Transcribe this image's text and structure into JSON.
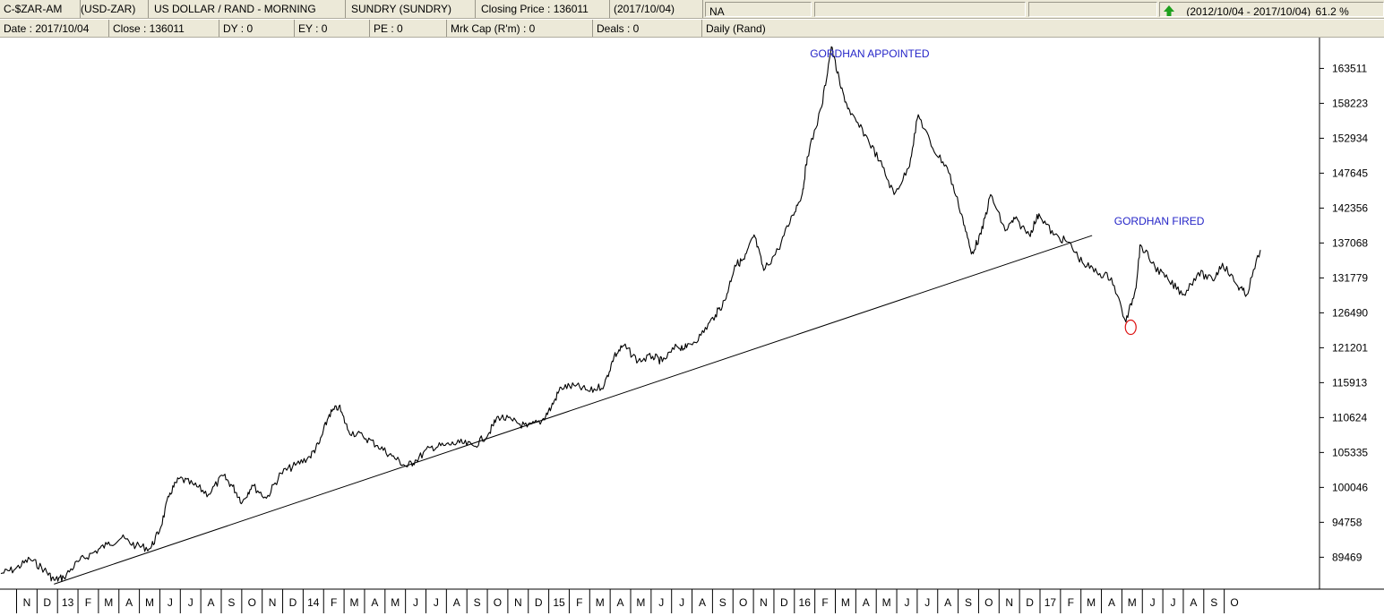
{
  "header": {
    "code": "C-$ZAR-AM",
    "pair": "(USD-ZAR)",
    "name": "US DOLLAR / RAND - MORNING",
    "sector": "SUNDRY (SUNDRY)",
    "closing": "Closing Price : 136011",
    "closing_date": "(2017/10/04)",
    "na": "NA",
    "range": "(2012/10/04 - 2017/10/04)",
    "pct": "61.2 %",
    "arrow_color": "#1ea01e"
  },
  "stats": {
    "date": "Date : 2017/10/04",
    "close": "Close : 136011",
    "dy": "DY : 0",
    "ey": "EY : 0",
    "pe": "PE : 0",
    "mrkcap": "Mrk Cap (R'm) : 0",
    "deals": "Deals : 0",
    "period": "Daily (Rand)"
  },
  "chart_data": {
    "type": "line",
    "x_start": "2012-10-04",
    "x_end": "2017-10-04",
    "ylim": [
      84500,
      167500
    ],
    "y_ticks": [
      89469,
      94758,
      100046,
      105335,
      110624,
      115913,
      121201,
      126490,
      131779,
      137068,
      142356,
      147645,
      152934,
      158223,
      163511
    ],
    "x_ticks": [
      "N",
      "D",
      "13",
      "F",
      "M",
      "A",
      "M",
      "J",
      "J",
      "A",
      "S",
      "O",
      "N",
      "D",
      "14",
      "F",
      "M",
      "A",
      "M",
      "J",
      "J",
      "A",
      "S",
      "O",
      "N",
      "D",
      "15",
      "F",
      "M",
      "A",
      "M",
      "J",
      "J",
      "A",
      "S",
      "O",
      "N",
      "D",
      "16",
      "F",
      "M",
      "A",
      "M",
      "J",
      "J",
      "A",
      "S",
      "O",
      "N",
      "D",
      "17",
      "F",
      "M",
      "A",
      "M",
      "J",
      "J",
      "A",
      "S",
      "O"
    ],
    "series": [
      {
        "values": [
          [
            "2012-10-04",
            87000
          ],
          [
            "2012-10-25",
            87700
          ],
          [
            "2012-11-15",
            89200
          ],
          [
            "2012-12-06",
            87600
          ],
          [
            "2012-12-20",
            86000
          ],
          [
            "2013-01-03",
            86400
          ],
          [
            "2013-01-24",
            88800
          ],
          [
            "2013-02-14",
            90100
          ],
          [
            "2013-03-07",
            91400
          ],
          [
            "2013-03-28",
            92400
          ],
          [
            "2013-04-18",
            91200
          ],
          [
            "2013-05-09",
            90800
          ],
          [
            "2013-05-23",
            93800
          ],
          [
            "2013-06-06",
            99200
          ],
          [
            "2013-06-20",
            101400
          ],
          [
            "2013-07-11",
            100400
          ],
          [
            "2013-08-01",
            99000
          ],
          [
            "2013-08-22",
            101800
          ],
          [
            "2013-09-05",
            100200
          ],
          [
            "2013-09-19",
            97800
          ],
          [
            "2013-10-03",
            100400
          ],
          [
            "2013-10-24",
            98400
          ],
          [
            "2013-11-14",
            102200
          ],
          [
            "2013-12-05",
            103400
          ],
          [
            "2013-12-26",
            104700
          ],
          [
            "2014-01-09",
            106800
          ],
          [
            "2014-01-23",
            111100
          ],
          [
            "2014-02-06",
            112300
          ],
          [
            "2014-02-20",
            108600
          ],
          [
            "2014-03-13",
            107800
          ],
          [
            "2014-04-03",
            106400
          ],
          [
            "2014-04-24",
            104800
          ],
          [
            "2014-05-15",
            103200
          ],
          [
            "2014-05-29",
            104200
          ],
          [
            "2014-06-19",
            106100
          ],
          [
            "2014-07-10",
            106400
          ],
          [
            "2014-07-31",
            106800
          ],
          [
            "2014-08-21",
            106300
          ],
          [
            "2014-09-11",
            108200
          ],
          [
            "2014-09-25",
            110800
          ],
          [
            "2014-10-16",
            110100
          ],
          [
            "2014-11-06",
            109200
          ],
          [
            "2014-11-27",
            110100
          ],
          [
            "2014-12-11",
            112200
          ],
          [
            "2014-12-25",
            115200
          ],
          [
            "2015-01-15",
            115400
          ],
          [
            "2015-02-05",
            114600
          ],
          [
            "2015-02-26",
            115600
          ],
          [
            "2015-03-12",
            119900
          ],
          [
            "2015-03-26",
            121500
          ],
          [
            "2015-04-16",
            119200
          ],
          [
            "2015-05-07",
            119900
          ],
          [
            "2015-05-21",
            119100
          ],
          [
            "2015-06-11",
            121400
          ],
          [
            "2015-06-25",
            121200
          ],
          [
            "2015-07-16",
            123100
          ],
          [
            "2015-08-06",
            126200
          ],
          [
            "2015-08-20",
            128400
          ],
          [
            "2015-09-03",
            133700
          ],
          [
            "2015-09-17",
            134600
          ],
          [
            "2015-10-01",
            138300
          ],
          [
            "2015-10-15",
            132900
          ],
          [
            "2015-11-05",
            136100
          ],
          [
            "2015-11-26",
            141300
          ],
          [
            "2015-12-10",
            144600
          ],
          [
            "2015-12-17",
            150100
          ],
          [
            "2016-01-07",
            157700
          ],
          [
            "2016-01-21",
            166800
          ],
          [
            "2016-02-04",
            160500
          ],
          [
            "2016-02-18",
            156500
          ],
          [
            "2016-03-10",
            153500
          ],
          [
            "2016-03-31",
            149500
          ],
          [
            "2016-04-21",
            144400
          ],
          [
            "2016-05-12",
            148400
          ],
          [
            "2016-05-26",
            156500
          ],
          [
            "2016-06-16",
            151400
          ],
          [
            "2016-07-07",
            148500
          ],
          [
            "2016-07-28",
            141400
          ],
          [
            "2016-08-11",
            135400
          ],
          [
            "2016-08-25",
            138400
          ],
          [
            "2016-09-08",
            144400
          ],
          [
            "2016-09-29",
            138900
          ],
          [
            "2016-10-13",
            140700
          ],
          [
            "2016-11-03",
            138300
          ],
          [
            "2016-11-17",
            141500
          ],
          [
            "2016-12-08",
            138300
          ],
          [
            "2016-12-29",
            137200
          ],
          [
            "2017-01-19",
            134100
          ],
          [
            "2017-02-09",
            132600
          ],
          [
            "2017-03-02",
            131800
          ],
          [
            "2017-03-23",
            125100
          ],
          [
            "2017-04-06",
            130100
          ],
          [
            "2017-04-13",
            136800
          ],
          [
            "2017-05-04",
            133500
          ],
          [
            "2017-05-25",
            131200
          ],
          [
            "2017-06-15",
            129300
          ],
          [
            "2017-07-06",
            132600
          ],
          [
            "2017-07-27",
            131400
          ],
          [
            "2017-08-10",
            134000
          ],
          [
            "2017-08-31",
            130700
          ],
          [
            "2017-09-14",
            129200
          ],
          [
            "2017-10-04",
            136011
          ]
        ]
      }
    ],
    "trendline": [
      [
        "2012-12-20",
        85400
      ],
      [
        "2017-02-02",
        138200
      ]
    ],
    "annotations": [
      {
        "text": "GORDHAN APPOINTED",
        "date": "2015-12-21",
        "value": 165200,
        "color": "#2525c8"
      },
      {
        "text": "GORDHAN FIRED",
        "date": "2017-03-06",
        "value": 139800,
        "color": "#2525c8"
      }
    ],
    "marker": {
      "date": "2017-03-30",
      "value": 124300,
      "color": "#dd1111"
    },
    "grid": false
  }
}
